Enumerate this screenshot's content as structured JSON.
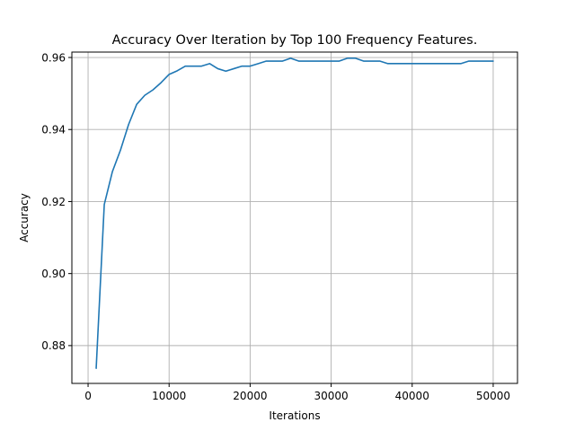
{
  "chart_data": {
    "type": "line",
    "title": "Accuracy Over Iteration by Top 100 Frequency Features.",
    "xlabel": "Iterations",
    "ylabel": "Accuracy",
    "xlim": [
      -2000,
      53000
    ],
    "ylim": [
      0.8695,
      0.9615
    ],
    "xticks": [
      0,
      10000,
      20000,
      30000,
      40000,
      50000
    ],
    "xtick_labels": [
      "0",
      "10000",
      "20000",
      "30000",
      "40000",
      "50000"
    ],
    "yticks": [
      0.88,
      0.9,
      0.92,
      0.94,
      0.96
    ],
    "ytick_labels": [
      "0.88",
      "0.90",
      "0.92",
      "0.94",
      "0.96"
    ],
    "grid": true,
    "series": [
      {
        "color": "#1f77b4",
        "x": [
          1000,
          2000,
          3000,
          4000,
          5000,
          6000,
          7000,
          8000,
          9000,
          10000,
          11000,
          12000,
          13000,
          14000,
          15000,
          16000,
          17000,
          18000,
          19000,
          20000,
          21000,
          22000,
          23000,
          24000,
          25000,
          26000,
          27000,
          28000,
          29000,
          30000,
          31000,
          32000,
          33000,
          34000,
          35000,
          36000,
          37000,
          38000,
          39000,
          40000,
          41000,
          42000,
          43000,
          44000,
          45000,
          46000,
          47000,
          48000,
          49000,
          50000
        ],
        "y": [
          0.8737,
          0.9192,
          0.9283,
          0.9343,
          0.9414,
          0.947,
          0.9495,
          0.951,
          0.953,
          0.9553,
          0.9563,
          0.9576,
          0.9576,
          0.9576,
          0.9583,
          0.9569,
          0.9562,
          0.9569,
          0.9576,
          0.9576,
          0.9583,
          0.959,
          0.959,
          0.959,
          0.9598,
          0.959,
          0.959,
          0.959,
          0.959,
          0.959,
          0.959,
          0.9598,
          0.9598,
          0.959,
          0.959,
          0.959,
          0.9583,
          0.9583,
          0.9583,
          0.9583,
          0.9583,
          0.9583,
          0.9583,
          0.9583,
          0.9583,
          0.9583,
          0.959,
          0.959,
          0.959,
          0.959
        ]
      }
    ]
  }
}
